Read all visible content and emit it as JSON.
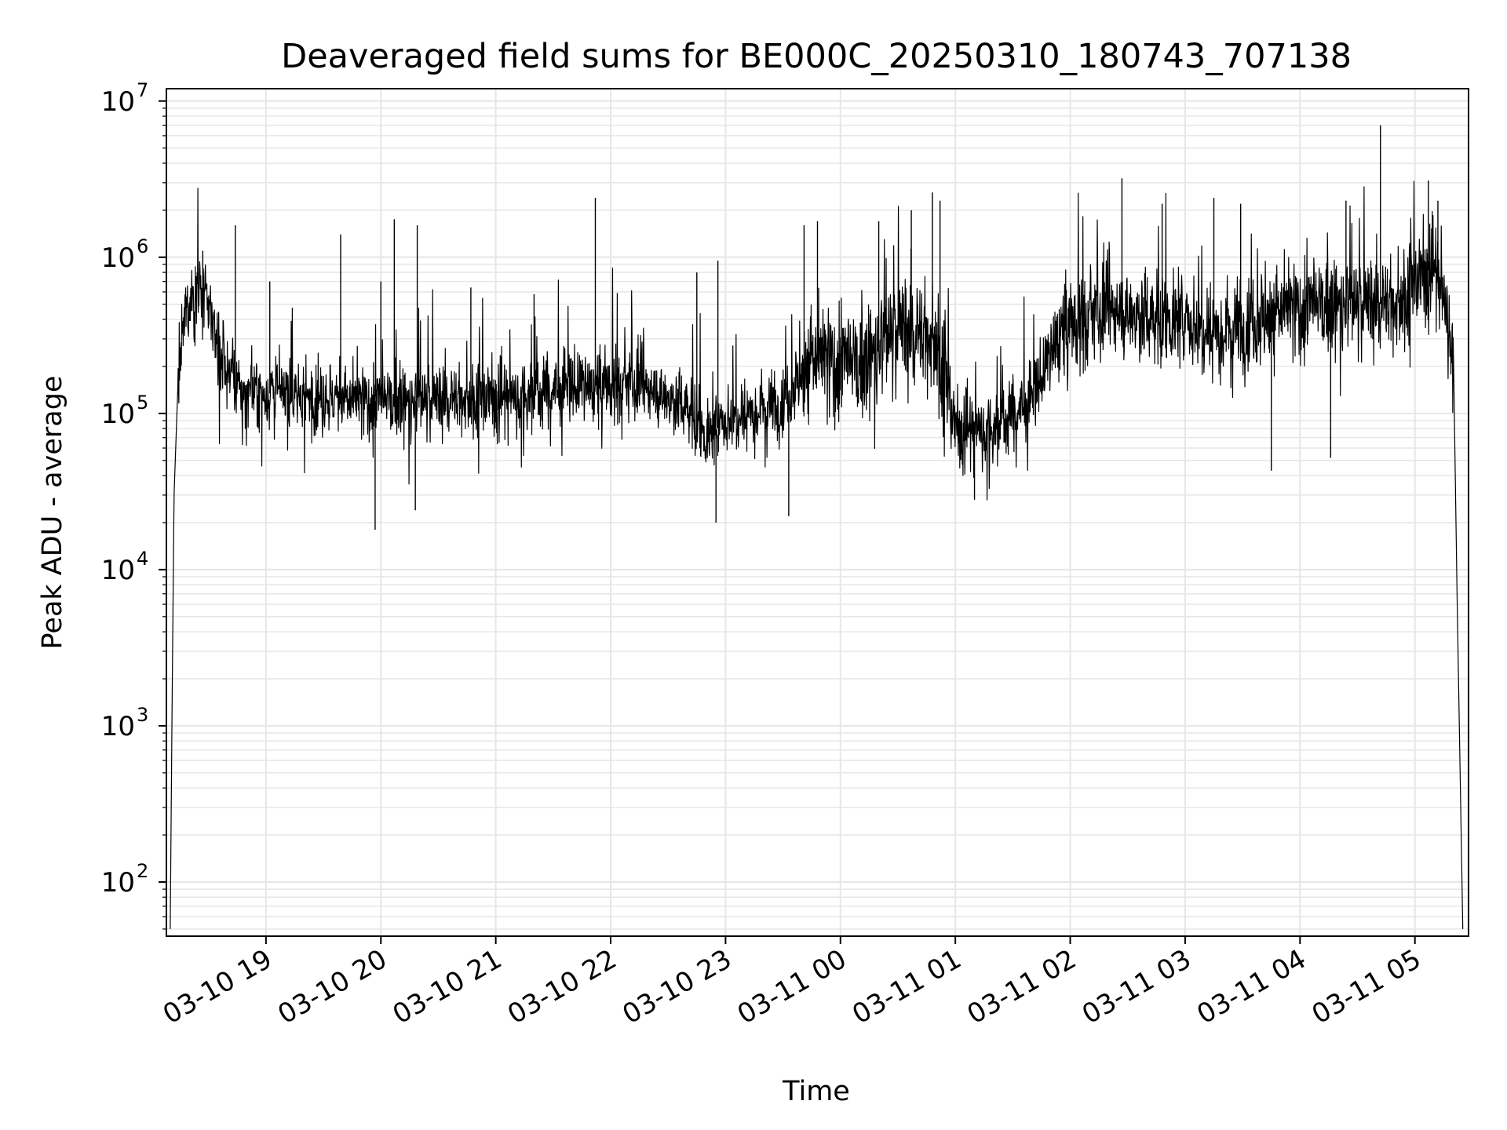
{
  "chart_data": {
    "type": "line",
    "title": "Deaveraged field sums for BE000C_20250310_180743_707138",
    "xlabel": "Time",
    "ylabel": "Peak ADU - average",
    "yscale": "log",
    "ylim": [
      45,
      12000000
    ],
    "xlim": [
      "2025-03-10 18:08",
      "2025-03-11 05:28"
    ],
    "grid": true,
    "line_color": "#000000",
    "grid_color": "#e6e6e6",
    "x_ticks": [
      {
        "time": "2025-03-10 19:00",
        "label": "03-10 19"
      },
      {
        "time": "2025-03-10 20:00",
        "label": "03-10 20"
      },
      {
        "time": "2025-03-10 21:00",
        "label": "03-10 21"
      },
      {
        "time": "2025-03-10 22:00",
        "label": "03-10 22"
      },
      {
        "time": "2025-03-10 23:00",
        "label": "03-10 23"
      },
      {
        "time": "2025-03-11 00:00",
        "label": "03-11 00"
      },
      {
        "time": "2025-03-11 01:00",
        "label": "03-11 01"
      },
      {
        "time": "2025-03-11 02:00",
        "label": "03-11 02"
      },
      {
        "time": "2025-03-11 03:00",
        "label": "03-11 03"
      },
      {
        "time": "2025-03-11 04:00",
        "label": "03-11 04"
      },
      {
        "time": "2025-03-11 05:00",
        "label": "03-11 05"
      }
    ],
    "y_ticks": [
      {
        "value": 100,
        "mantissa": "10",
        "exp": "2"
      },
      {
        "value": 1000,
        "mantissa": "10",
        "exp": "3"
      },
      {
        "value": 10000,
        "mantissa": "10",
        "exp": "4"
      },
      {
        "value": 100000,
        "mantissa": "10",
        "exp": "5"
      },
      {
        "value": 1000000,
        "mantissa": "10",
        "exp": "6"
      },
      {
        "value": 10000000,
        "mantissa": "10",
        "exp": "7"
      }
    ],
    "series": [
      {
        "points": [
          [
            "2025-03-10 18:10",
            50
          ],
          [
            "2025-03-10 18:11",
            1500
          ],
          [
            "2025-03-10 18:12",
            30000
          ],
          [
            "2025-03-10 18:14",
            150000
          ],
          [
            "2025-03-10 18:18",
            450000
          ],
          [
            "2025-03-10 18:24",
            650000
          ],
          [
            "2025-03-10 18:30",
            500000
          ],
          [
            "2025-03-10 18:36",
            250000
          ],
          [
            "2025-03-10 18:45",
            140000
          ],
          [
            "2025-03-10 19:15",
            130000
          ],
          [
            "2025-03-10 19:45",
            120000
          ],
          [
            "2025-03-10 20:15",
            120000
          ],
          [
            "2025-03-10 20:45",
            125000
          ],
          [
            "2025-03-10 21:15",
            130000
          ],
          [
            "2025-03-10 21:45",
            150000
          ],
          [
            "2025-03-10 22:15",
            150000
          ],
          [
            "2025-03-10 22:40",
            110000
          ],
          [
            "2025-03-10 22:50",
            70000
          ],
          [
            "2025-03-10 23:05",
            100000
          ],
          [
            "2025-03-10 23:30",
            120000
          ],
          [
            "2025-03-10 23:45",
            220000
          ],
          [
            "2025-03-11 00:10",
            200000
          ],
          [
            "2025-03-11 00:30",
            350000
          ],
          [
            "2025-03-11 00:50",
            300000
          ],
          [
            "2025-03-11 01:00",
            80000
          ],
          [
            "2025-03-11 01:20",
            80000
          ],
          [
            "2025-03-11 01:40",
            120000
          ],
          [
            "2025-03-11 01:55",
            350000
          ],
          [
            "2025-03-11 02:20",
            450000
          ],
          [
            "2025-03-11 02:50",
            400000
          ],
          [
            "2025-03-11 03:20",
            350000
          ],
          [
            "2025-03-11 03:50",
            450000
          ],
          [
            "2025-03-11 04:20",
            500000
          ],
          [
            "2025-03-11 04:50",
            500000
          ],
          [
            "2025-03-11 05:10",
            900000
          ],
          [
            "2025-03-11 05:20",
            300000
          ],
          [
            "2025-03-11 05:22",
            7000
          ],
          [
            "2025-03-11 05:25",
            50
          ]
        ],
        "spikes": [
          [
            "2025-03-10 18:27",
            1100000
          ],
          [
            "2025-03-10 18:44",
            1600000
          ],
          [
            "2025-03-10 19:02",
            700000
          ],
          [
            "2025-03-10 19:39",
            1400000
          ],
          [
            "2025-03-10 20:00",
            700000
          ],
          [
            "2025-03-10 20:07",
            1750000
          ],
          [
            "2025-03-10 20:19",
            1600000
          ],
          [
            "2025-03-10 20:47",
            640000
          ],
          [
            "2025-03-10 21:20",
            580000
          ],
          [
            "2025-03-10 21:52",
            2400000
          ],
          [
            "2025-03-10 22:45",
            800000
          ],
          [
            "2025-03-10 22:56",
            950000
          ],
          [
            "2025-03-10 23:41",
            1600000
          ],
          [
            "2025-03-10 23:48",
            1700000
          ],
          [
            "2025-03-11 00:20",
            1700000
          ],
          [
            "2025-03-11 00:37",
            2000000
          ],
          [
            "2025-03-11 00:48",
            2600000
          ],
          [
            "2025-03-11 00:52",
            2300000
          ],
          [
            "2025-03-11 02:27",
            3200000
          ],
          [
            "2025-03-11 02:48",
            2200000
          ],
          [
            "2025-03-11 03:15",
            2400000
          ],
          [
            "2025-03-11 03:29",
            2200000
          ],
          [
            "2025-03-11 04:24",
            2300000
          ],
          [
            "2025-03-11 04:42",
            7000000
          ],
          [
            "2025-03-11 05:07",
            3100000
          ],
          [
            "2025-03-11 05:12",
            2300000
          ],
          [
            "2025-03-10 19:57",
            18000
          ],
          [
            "2025-03-10 20:18",
            24000
          ],
          [
            "2025-03-10 22:55",
            20000
          ],
          [
            "2025-03-10 23:33",
            22000
          ],
          [
            "2025-03-11 01:10",
            28000
          ],
          [
            "2025-03-11 03:45",
            43000
          ],
          [
            "2025-03-11 04:16",
            52000
          ]
        ]
      }
    ]
  }
}
